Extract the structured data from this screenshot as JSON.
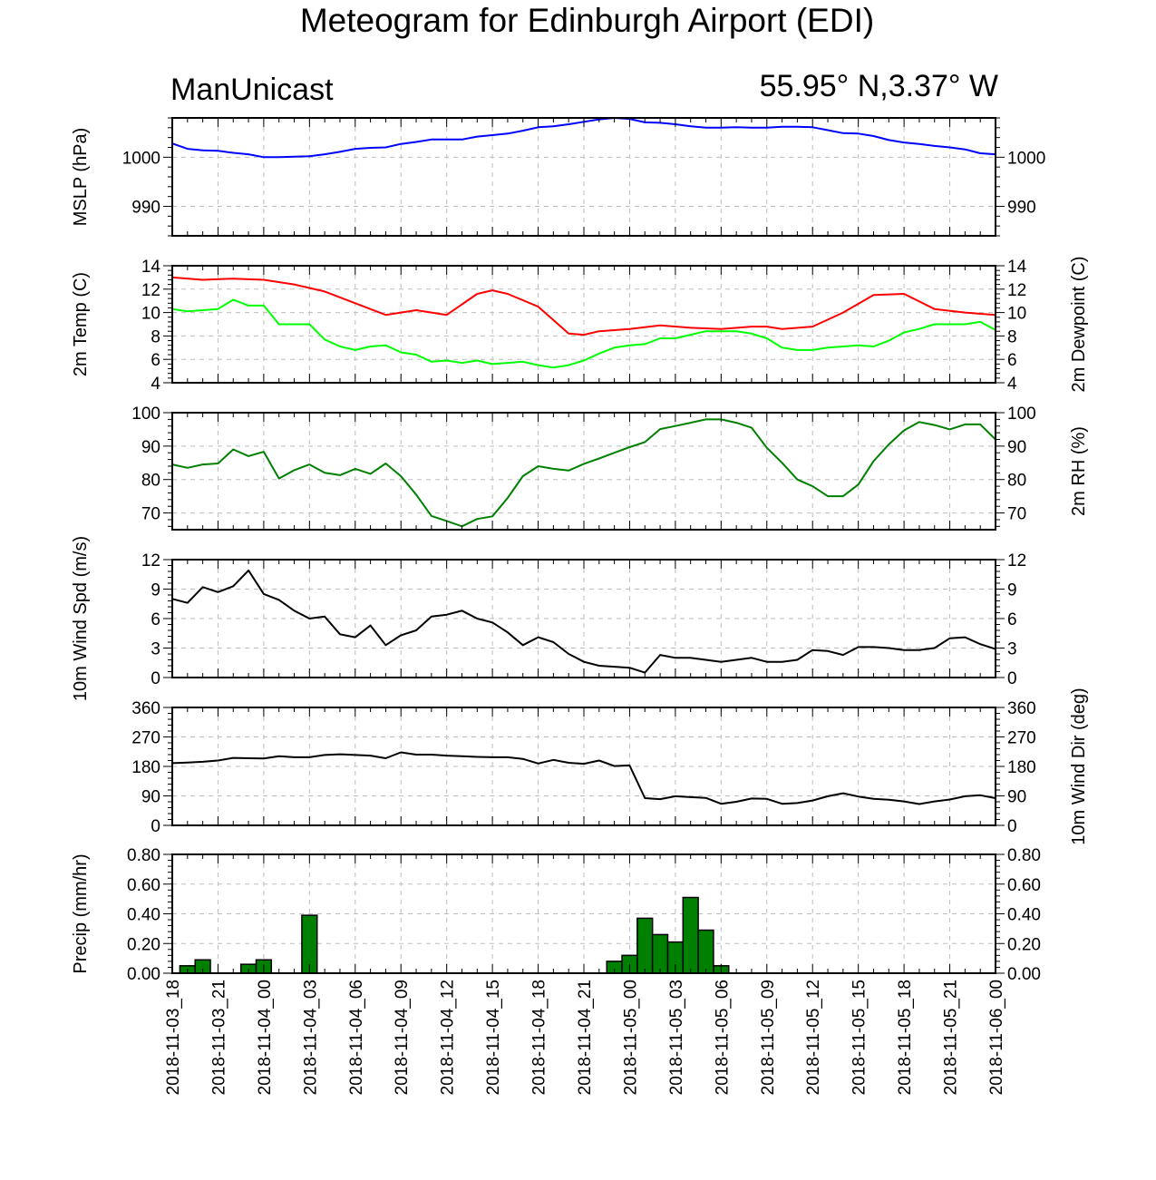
{
  "title": "Meteogram for Edinburgh Airport (EDI)",
  "model": "ManUnicast",
  "location": "55.95° N,3.37° W",
  "time_labels": [
    "2018-11-03_18",
    "2018-11-03_21",
    "2018-11-04_00",
    "2018-11-04_03",
    "2018-11-04_06",
    "2018-11-04_09",
    "2018-11-04_12",
    "2018-11-04_15",
    "2018-11-04_18",
    "2018-11-04_21",
    "2018-11-05_00",
    "2018-11-05_03",
    "2018-11-05_06",
    "2018-11-05_09",
    "2018-11-05_12",
    "2018-11-05_15",
    "2018-11-05_18",
    "2018-11-05_21",
    "2018-11-06_00"
  ],
  "colors": {
    "mslp": "#0000ff",
    "temp": "#ff0000",
    "dewpoint": "#00ff00",
    "rh": "#008000",
    "wind": "#000000",
    "precip_fill": "#008000",
    "grid": "#bdbdbd"
  },
  "chart_data": [
    {
      "type": "line",
      "id": "mslp",
      "ylabel": "MSLP (hPa)",
      "ylabel_right": "",
      "ylim": [
        984,
        1008
      ],
      "ticks": [
        990,
        1000
      ],
      "tick_labels": [
        "990",
        "1000"
      ],
      "grid": true,
      "x_hours": [
        0,
        1,
        2,
        3,
        4,
        5,
        6,
        7,
        8,
        9,
        10,
        11,
        12,
        13,
        14,
        15,
        16,
        17,
        18,
        19,
        20,
        21,
        22,
        23,
        24,
        25,
        26,
        27,
        28,
        29,
        30,
        31,
        32,
        33,
        34,
        35,
        36,
        37,
        38,
        39,
        40,
        41,
        42,
        43,
        44,
        45,
        46,
        47,
        48,
        49,
        50,
        51,
        52,
        53,
        54
      ],
      "series": [
        {
          "color_key": "mslp",
          "values": [
            1002.8,
            1001.7,
            1001.4,
            1001.3,
            1000.9,
            1000.6,
            1000.0,
            1000.0,
            1000.1,
            1000.2,
            1000.6,
            1001.1,
            1001.7,
            1001.9,
            1002.0,
            1002.7,
            1003.1,
            1003.6,
            1003.6,
            1003.6,
            1004.2,
            1004.5,
            1004.8,
            1005.4,
            1006.1,
            1006.3,
            1006.7,
            1007.2,
            1007.7,
            1008.0,
            1007.8,
            1007.1,
            1007.0,
            1006.7,
            1006.3,
            1006.0,
            1006.0,
            1006.1,
            1006.0,
            1006.0,
            1006.2,
            1006.2,
            1006.1,
            1005.5,
            1004.9,
            1004.8,
            1004.3,
            1003.5,
            1003.0,
            1002.7,
            1002.3,
            1002.0,
            1001.6,
            1000.8,
            1000.6
          ]
        }
      ]
    },
    {
      "type": "line",
      "id": "temp",
      "ylabel": "2m Temp (C)",
      "ylabel_right": "2m Dewpoint (C)",
      "ylim": [
        4,
        14
      ],
      "ticks": [
        4,
        6,
        8,
        10,
        12,
        14
      ],
      "tick_labels": [
        "4",
        "6",
        "8",
        "10",
        "12",
        "14"
      ],
      "grid": true,
      "series": [
        {
          "color_key": "temp",
          "x_hours": [
            0,
            2,
            4,
            6,
            8,
            10,
            12,
            14,
            16,
            18,
            20,
            21,
            22,
            24,
            26,
            27,
            28,
            30,
            32,
            34,
            36,
            38,
            39,
            40,
            42,
            44,
            46,
            48,
            50,
            52,
            54
          ],
          "values": [
            13.0,
            12.8,
            12.9,
            12.8,
            12.4,
            11.8,
            10.8,
            9.8,
            10.2,
            9.8,
            11.6,
            11.9,
            11.6,
            10.5,
            8.2,
            8.1,
            8.4,
            8.6,
            8.9,
            8.7,
            8.6,
            8.8,
            8.8,
            8.6,
            8.8,
            10.0,
            11.5,
            11.6,
            10.3,
            10.0,
            9.8
          ]
        },
        {
          "color_key": "dewpoint",
          "x_hours": [
            0,
            1,
            2,
            3,
            4,
            5,
            6,
            7,
            8,
            9,
            10,
            11,
            12,
            13,
            14,
            15,
            16,
            17,
            18,
            19,
            20,
            21,
            22,
            23,
            24,
            25,
            26,
            27,
            28,
            29,
            30,
            31,
            32,
            33,
            34,
            35,
            36,
            37,
            38,
            39,
            40,
            41,
            42,
            43,
            44,
            45,
            46,
            47,
            48,
            49,
            50,
            51,
            52,
            53,
            54
          ],
          "values": [
            10.3,
            10.1,
            10.2,
            10.3,
            11.1,
            10.6,
            10.6,
            9.0,
            9.0,
            9.0,
            7.7,
            7.1,
            6.8,
            7.1,
            7.2,
            6.6,
            6.4,
            5.8,
            5.9,
            5.7,
            5.9,
            5.6,
            5.7,
            5.8,
            5.5,
            5.3,
            5.5,
            5.9,
            6.5,
            7.0,
            7.2,
            7.3,
            7.8,
            7.8,
            8.1,
            8.4,
            8.4,
            8.4,
            8.2,
            7.8,
            7.0,
            6.8,
            6.8,
            7.0,
            7.1,
            7.2,
            7.1,
            7.6,
            8.3,
            8.6,
            9.0,
            9.0,
            9.0,
            9.2,
            8.5
          ]
        }
      ]
    },
    {
      "type": "line",
      "id": "rh",
      "ylabel": "",
      "ylabel_right": "2m RH (%)",
      "ylim": [
        65,
        100
      ],
      "ticks": [
        70,
        80,
        90,
        100
      ],
      "tick_labels": [
        "70",
        "80",
        "90",
        "100"
      ],
      "grid": true,
      "x_hours": [
        0,
        1,
        2,
        3,
        4,
        5,
        6,
        7,
        8,
        9,
        10,
        11,
        12,
        13,
        14,
        15,
        16,
        17,
        18,
        19,
        20,
        21,
        22,
        23,
        24,
        25,
        26,
        27,
        28,
        29,
        30,
        31,
        32,
        33,
        34,
        35,
        36,
        37,
        38,
        39,
        40,
        41,
        42,
        43,
        44,
        45,
        46,
        47,
        48,
        49,
        50,
        51,
        52,
        53,
        54
      ],
      "series": [
        {
          "color_key": "rh",
          "values": [
            84.5,
            83.5,
            84.5,
            84.8,
            89.0,
            87.0,
            88.3,
            80.3,
            82.8,
            84.5,
            82.0,
            81.3,
            83.2,
            81.7,
            84.8,
            81.0,
            75.5,
            69.1,
            67.6,
            66.0,
            68.2,
            69.0,
            74.5,
            81.0,
            84.0,
            83.2,
            82.7,
            84.7,
            86.3,
            88.0,
            89.7,
            91.2,
            95.1,
            96.0,
            97.0,
            98.0,
            98.0,
            97.0,
            95.5,
            89.5,
            85.0,
            80.0,
            78.0,
            75.0,
            75.0,
            78.5,
            85.5,
            90.5,
            94.7,
            97.2,
            96.3,
            95.0,
            96.5,
            96.5,
            92.0
          ]
        }
      ]
    },
    {
      "type": "line",
      "id": "wspd",
      "ylabel": "10m Wind Spd (m/s)",
      "ylabel_right": "",
      "ylim": [
        0,
        12
      ],
      "ticks": [
        0,
        3,
        6,
        9,
        12
      ],
      "tick_labels": [
        "0",
        "3",
        "6",
        "9",
        "12"
      ],
      "grid": true,
      "x_hours": [
        0,
        1,
        2,
        3,
        4,
        5,
        6,
        7,
        8,
        9,
        10,
        11,
        12,
        13,
        14,
        15,
        16,
        17,
        18,
        19,
        20,
        21,
        22,
        23,
        24,
        25,
        26,
        27,
        28,
        29,
        30,
        31,
        32,
        33,
        34,
        35,
        36,
        37,
        38,
        39,
        40,
        41,
        42,
        43,
        44,
        45,
        46,
        47,
        48,
        49,
        50,
        51,
        52,
        53,
        54
      ],
      "series": [
        {
          "color_key": "wind",
          "values": [
            8.0,
            7.6,
            9.2,
            8.7,
            9.3,
            10.9,
            8.5,
            7.9,
            6.8,
            6.0,
            6.2,
            4.4,
            4.1,
            5.3,
            3.3,
            4.3,
            4.8,
            6.2,
            6.4,
            6.8,
            6.0,
            5.6,
            4.6,
            3.3,
            4.1,
            3.6,
            2.4,
            1.6,
            1.2,
            1.1,
            1.0,
            0.5,
            2.3,
            2.0,
            2.0,
            1.8,
            1.6,
            1.8,
            2.0,
            1.6,
            1.6,
            1.8,
            2.8,
            2.7,
            2.3,
            3.1,
            3.1,
            3.0,
            2.8,
            2.8,
            3.0,
            4.0,
            4.1,
            3.4,
            2.9
          ]
        }
      ]
    },
    {
      "type": "line",
      "id": "wdir",
      "ylabel": "",
      "ylabel_right": "10m Wind Dir (deg)",
      "ylim": [
        0,
        360
      ],
      "ticks": [
        0,
        90,
        180,
        270,
        360
      ],
      "tick_labels": [
        "0",
        "90",
        "180",
        "270",
        "360"
      ],
      "grid": true,
      "x_hours": [
        0,
        1,
        2,
        3,
        4,
        5,
        6,
        7,
        8,
        9,
        10,
        11,
        12,
        13,
        14,
        15,
        16,
        17,
        18,
        19,
        20,
        21,
        22,
        23,
        24,
        25,
        26,
        27,
        28,
        29,
        30,
        31,
        32,
        33,
        34,
        35,
        36,
        37,
        38,
        39,
        40,
        41,
        42,
        43,
        44,
        45,
        46,
        47,
        48,
        49,
        50,
        51,
        52,
        53,
        54
      ],
      "series": [
        {
          "color_key": "wind",
          "values": [
            190,
            192,
            194,
            198,
            206,
            205,
            204,
            211,
            208,
            208,
            215,
            217,
            215,
            213,
            205,
            223,
            216,
            216,
            213,
            211,
            209,
            208,
            208,
            203,
            189,
            200,
            191,
            188,
            198,
            181,
            183,
            83,
            80,
            89,
            86,
            84,
            66,
            72,
            82,
            81,
            66,
            68,
            76,
            89,
            98,
            88,
            81,
            78,
            73,
            65,
            73,
            79,
            89,
            92,
            83
          ]
        }
      ]
    },
    {
      "type": "bar",
      "id": "precip",
      "ylabel": "Precip (mm/hr)",
      "ylabel_right": "",
      "ylim": [
        0,
        0.8
      ],
      "ticks": [
        0,
        0.2,
        0.4,
        0.6,
        0.8
      ],
      "tick_labels": [
        "0.00",
        "0.20",
        "0.40",
        "0.60",
        "0.80"
      ],
      "grid": true,
      "bars": [
        {
          "x_hour": 1,
          "value": 0.05
        },
        {
          "x_hour": 2,
          "value": 0.09
        },
        {
          "x_hour": 5,
          "value": 0.06
        },
        {
          "x_hour": 6,
          "value": 0.09
        },
        {
          "x_hour": 9,
          "value": 0.39
        },
        {
          "x_hour": 29,
          "value": 0.08
        },
        {
          "x_hour": 30,
          "value": 0.12
        },
        {
          "x_hour": 31,
          "value": 0.37
        },
        {
          "x_hour": 32,
          "value": 0.26
        },
        {
          "x_hour": 33,
          "value": 0.21
        },
        {
          "x_hour": 34,
          "value": 0.51
        },
        {
          "x_hour": 35,
          "value": 0.29
        },
        {
          "x_hour": 36,
          "value": 0.05
        }
      ]
    }
  ]
}
